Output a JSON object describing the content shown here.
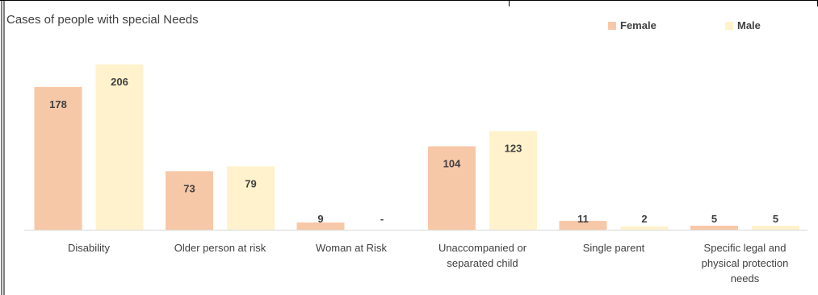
{
  "chart_data": {
    "type": "bar",
    "title": "Cases of people with special Needs",
    "categories": [
      [
        "Disability"
      ],
      [
        "Older person at risk"
      ],
      [
        "Woman at Risk"
      ],
      [
        "Unaccompanied or",
        "separated child"
      ],
      [
        "Single parent"
      ],
      [
        "Specific legal and",
        "physical protection",
        "needs"
      ]
    ],
    "series": [
      {
        "name": "Female",
        "color": "#F7C8A8",
        "values": [
          178,
          73,
          9,
          104,
          11,
          5
        ],
        "labels": [
          "178",
          "73",
          "9",
          "104",
          "11",
          "5"
        ]
      },
      {
        "name": "Male",
        "color": "#FFF2CC",
        "values": [
          206,
          79,
          0,
          123,
          2,
          5
        ],
        "labels": [
          "206",
          "79",
          "-",
          "123",
          "2",
          "5"
        ]
      }
    ],
    "ylim": [
      0,
      206
    ],
    "legend": "top-right",
    "grid": false
  }
}
